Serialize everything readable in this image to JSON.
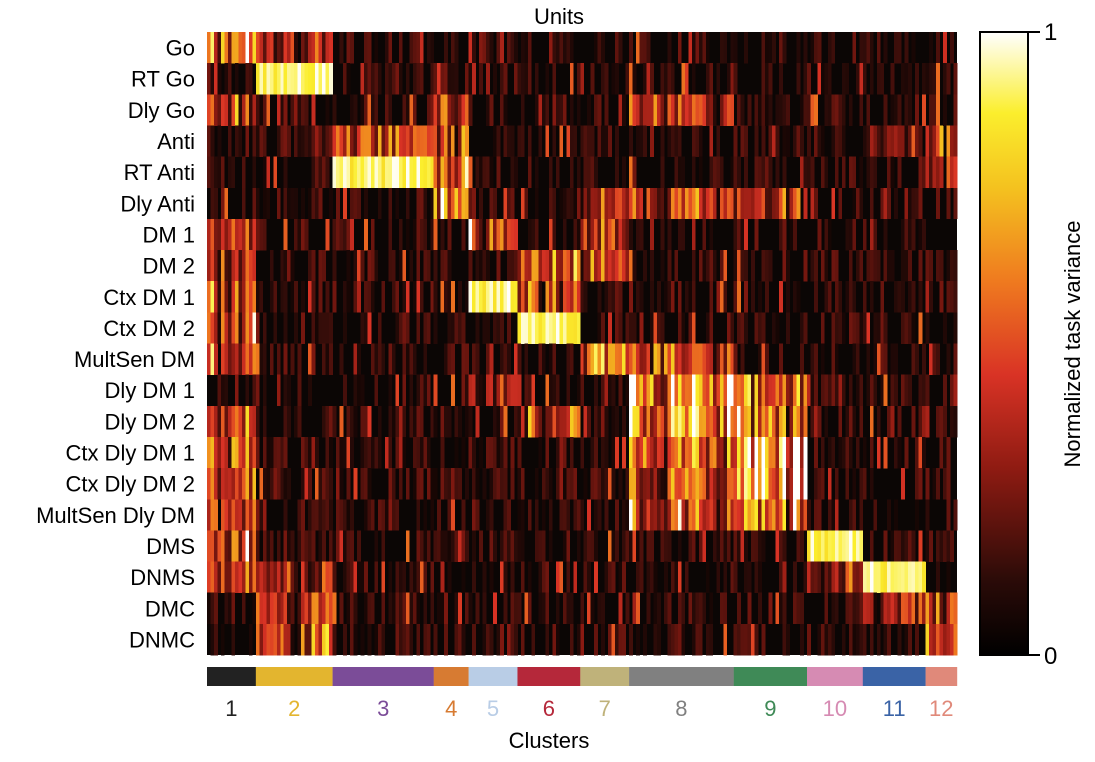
{
  "chart_data": {
    "type": "heatmap",
    "title": "Units",
    "xlabel": "Clusters",
    "rows": [
      "Go",
      "RT Go",
      "Dly Go",
      "Anti",
      "RT Anti",
      "Dly Anti",
      "DM 1",
      "DM 2",
      "Ctx DM 1",
      "Ctx DM 2",
      "MultSen DM",
      "Dly DM 1",
      "Dly DM 2",
      "Ctx Dly DM 1",
      "Ctx Dly DM 2",
      "MultSen Dly DM",
      "DMS",
      "DNMS",
      "DMC",
      "DNMC"
    ],
    "colorbar": {
      "label": "Normalized task variance",
      "min": 0,
      "max": 1,
      "colormap": "hot"
    },
    "clusters": [
      {
        "label": "1",
        "units": 14,
        "color": "#222222"
      },
      {
        "label": "2",
        "units": 22,
        "color": "#e3b52f"
      },
      {
        "label": "3",
        "units": 29,
        "color": "#7b4c98"
      },
      {
        "label": "4",
        "units": 10,
        "color": "#d77b32"
      },
      {
        "label": "5",
        "units": 14,
        "color": "#b9cde6"
      },
      {
        "label": "6",
        "units": 18,
        "color": "#b5283a"
      },
      {
        "label": "7",
        "units": 14,
        "color": "#bfb27a"
      },
      {
        "label": "8",
        "units": 30,
        "color": "#808080"
      },
      {
        "label": "9",
        "units": 21,
        "color": "#3f8a57"
      },
      {
        "label": "10",
        "units": 16,
        "color": "#d68bb3"
      },
      {
        "label": "11",
        "units": 18,
        "color": "#3a63a6"
      },
      {
        "label": "12",
        "units": 9,
        "color": "#e0897a"
      }
    ],
    "cluster_strengths": {
      "1": {
        "Go": 0.7,
        "Dly Go": 0.45,
        "DM 1": 0.5,
        "DM 2": 0.45,
        "Ctx DM 1": 0.5,
        "Ctx DM 2": 0.5,
        "MultSen DM": 0.45,
        "Dly DM 2": 0.45,
        "Ctx Dly DM 1": 0.55,
        "Ctx Dly DM 2": 0.55,
        "MultSen Dly DM": 0.5,
        "DMS": 0.6,
        "DNMS": 0.5
      },
      "2": {
        "RT Go": 0.95,
        "Go": 0.35,
        "DMC": 0.45,
        "DNMC": 0.45,
        "DNMS": 0.35
      },
      "3": {
        "RT Anti": 0.95,
        "Anti": 0.55
      },
      "4": {
        "Anti": 0.55,
        "RT Anti": 0.6,
        "Dly Anti": 0.7,
        "Dly Go": 0.45
      },
      "5": {
        "Ctx DM 1": 0.9,
        "DM 1": 0.55,
        "Dly DM 1": 0.45,
        "Go": 0.25
      },
      "6": {
        "DM 2": 0.65,
        "Ctx DM 2": 0.95,
        "Ctx DM 1": 0.55,
        "Dly DM 2": 0.45
      },
      "7": {
        "MultSen DM": 0.85,
        "Dly Anti": 0.45,
        "DM 1": 0.45,
        "DM 2": 0.45
      },
      "8": {
        "Dly DM 1": 0.85,
        "Dly DM 2": 0.85,
        "Ctx Dly DM 1": 0.6,
        "Ctx Dly DM 2": 0.6,
        "MultSen Dly DM": 0.6,
        "Dly Go": 0.5,
        "Dly Anti": 0.55,
        "MultSen DM": 0.55
      },
      "9": {
        "Ctx Dly DM 1": 0.85,
        "Ctx Dly DM 2": 0.85,
        "Dly DM 1": 0.6,
        "Dly DM 2": 0.6,
        "MultSen Dly DM": 0.6,
        "Dly Anti": 0.4
      },
      "10": {
        "DMS": 0.95,
        "DNMS": 0.35
      },
      "11": {
        "DNMS": 0.9,
        "DMC": 0.45,
        "Anti": 0.3
      },
      "12": {
        "DMC": 0.55,
        "DNMC": 0.6,
        "Anti": 0.4,
        "RT Anti": 0.35
      }
    }
  }
}
